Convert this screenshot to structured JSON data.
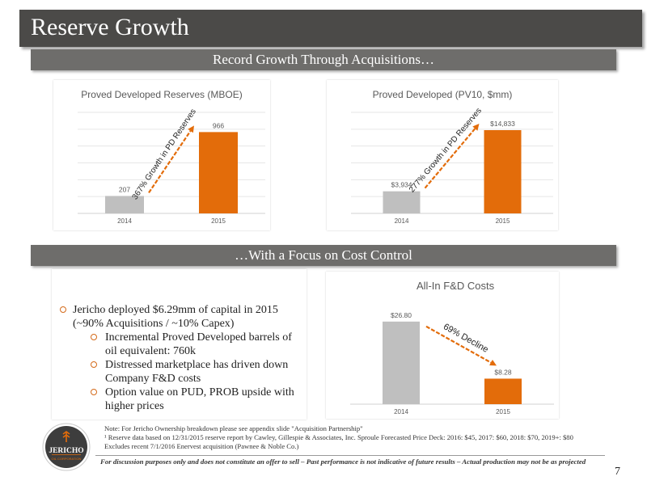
{
  "slide": {
    "title": "Reserve Growth",
    "band1": "Record Growth Through Acquisitions…",
    "band2": "…With a Focus on Cost Control",
    "page_number": "7"
  },
  "bullets": {
    "main": "Jericho deployed $6.29mm of capital in 2015 (~90% Acquisitions / ~10% Capex)",
    "subs": [
      "Incremental Proved Developed barrels of oil equivalent: 760k",
      "Distressed marketplace has driven down Company F&D costs",
      "Option value on PUD, PROB upside with higher prices"
    ]
  },
  "notes": [
    "Note: For Jericho Ownership breakdown please see appendix slide \"Acquisition Partnership\"",
    "¹ Reserve data based on 12/31/2015 reserve report by Cawley, Gillespie & Associates, Inc. Sproule Forecasted Price Deck: 2016: $45, 2017: $60, 2018: $70, 2019+: $80",
    "Excludes recent 7/1/2016 Enervest acquisition (Pawnee & Noble Co.)"
  ],
  "disclaimer": "For discussion purposes only and does not constitute an offer to sell – Past performance is not indicative of future results – Actual production may not be as projected",
  "logo": {
    "name": "JERICHO",
    "sub": "OIL CORPORATION"
  },
  "colors": {
    "gray_bar": "#bfbfbf",
    "orange_bar": "#e36c0a",
    "arrow": "#e36c0a",
    "title_bar": "#4b4a48",
    "band": "#6e6d6b"
  },
  "chart_data": [
    {
      "type": "bar",
      "title": "Proved Developed Reserves (MBOE)",
      "categories": [
        "2014",
        "2015"
      ],
      "values": [
        207,
        966
      ],
      "value_labels": [
        "207",
        "966"
      ],
      "ylim": [
        0,
        1200
      ],
      "grid": true,
      "annotation": "367% Growth in PD Reserves"
    },
    {
      "type": "bar",
      "title": "Proved Developed (PV10, $mm)",
      "categories": [
        "2014",
        "2015"
      ],
      "values": [
        3.934,
        14.833
      ],
      "value_labels": [
        "$3,934",
        "$14,833"
      ],
      "ylim": [
        0,
        18
      ],
      "grid": true,
      "annotation": "277% Growth in PD Reserves"
    },
    {
      "type": "bar",
      "title": "All-In F&D Costs",
      "categories": [
        "2014",
        "2015"
      ],
      "values": [
        26.8,
        8.28
      ],
      "value_labels": [
        "$26.80",
        "$8.28"
      ],
      "ylim": [
        0,
        32
      ],
      "grid": false,
      "annotation": "69% Decline"
    }
  ]
}
